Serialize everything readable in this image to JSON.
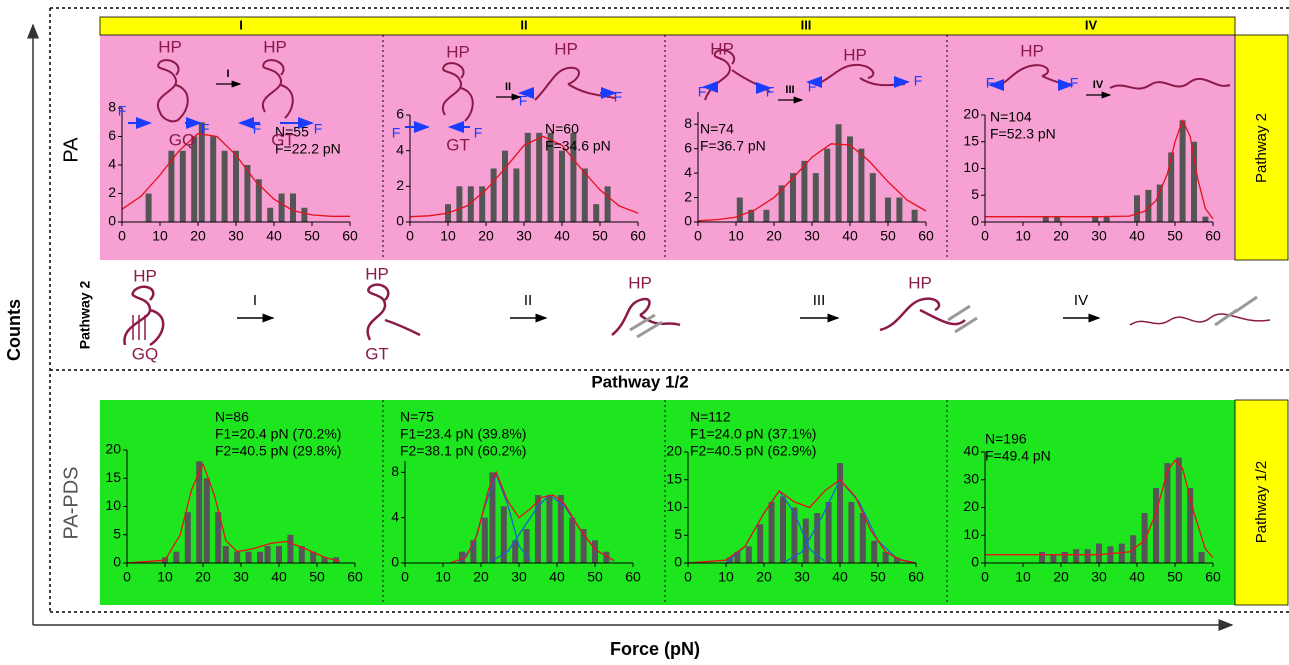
{
  "columns": [
    "I",
    "II",
    "III",
    "IV"
  ],
  "row_labels": [
    "PA",
    "PA-PDS"
  ],
  "side_labels": [
    "Pathway 2",
    "Pathway 1/2"
  ],
  "axis_labels": {
    "y": "Counts",
    "x": "Force (pN)"
  },
  "section_title": "Pathway 1/2",
  "pathway": {
    "label": "Pathway 2",
    "states": [
      "HP",
      "HP",
      "HP",
      "HP"
    ],
    "sub": [
      "GQ",
      "GT"
    ],
    "steps": [
      "I",
      "II",
      "III",
      "IV"
    ]
  },
  "insets": [
    {
      "labels": [
        "HP",
        "HP",
        "GQ",
        "GT",
        "F",
        "F",
        "F",
        "F"
      ],
      "step": "I"
    },
    {
      "labels": [
        "HP",
        "HP",
        "GT",
        "F",
        "F",
        "F",
        "F"
      ],
      "step": "II"
    },
    {
      "labels": [
        "HP",
        "HP",
        "F",
        "F",
        "F",
        "F"
      ],
      "step": "III"
    },
    {
      "labels": [
        "HP",
        "F",
        "F"
      ],
      "step": "IV"
    }
  ],
  "chart_data": [
    {
      "type": "bar",
      "background": "#f7a0d4",
      "color": "#555555",
      "x": [
        7,
        13,
        16,
        19,
        21,
        24,
        27,
        30,
        33,
        36,
        39,
        42,
        45,
        48
      ],
      "values": [
        2,
        5,
        5,
        6,
        7,
        6,
        5,
        5,
        4,
        3,
        1,
        2,
        2,
        1
      ],
      "xlim": [
        0,
        60
      ],
      "xticks": [
        0,
        10,
        20,
        30,
        40,
        50,
        60
      ],
      "ylim": [
        0,
        8
      ],
      "yticks": [
        0,
        2,
        4,
        6,
        8
      ],
      "annotations": [
        "N=55",
        "F=22.2 pN"
      ],
      "fits": [
        {
          "color": "#e8101a",
          "x": [
            0,
            5,
            10,
            15,
            20,
            25,
            30,
            35,
            40,
            45,
            50,
            55,
            60
          ],
          "values": [
            0.9,
            1.8,
            3.3,
            5.0,
            6.2,
            6.0,
            4.7,
            2.9,
            1.6,
            0.8,
            0.5,
            0.4,
            0.4
          ]
        }
      ]
    },
    {
      "type": "bar",
      "background": "#f7a0d4",
      "color": "#555555",
      "x": [
        10,
        13,
        16,
        19,
        22,
        25,
        28,
        31,
        34,
        37,
        40,
        43,
        46,
        49,
        52
      ],
      "values": [
        1,
        2,
        2,
        2,
        3,
        4,
        3,
        5,
        5,
        5,
        4,
        5,
        3,
        1,
        2
      ],
      "xlim": [
        0,
        60
      ],
      "xticks": [
        0,
        10,
        20,
        30,
        40,
        50,
        60
      ],
      "ylim": [
        0,
        6
      ],
      "yticks": [
        0,
        2,
        4,
        6
      ],
      "annotations": [
        "N=60",
        "F=34.6 pN"
      ],
      "fits": [
        {
          "color": "#e8101a",
          "x": [
            0,
            5,
            10,
            15,
            20,
            25,
            30,
            35,
            40,
            45,
            50,
            55,
            60
          ],
          "values": [
            0.3,
            0.35,
            0.5,
            0.9,
            1.8,
            3.0,
            4.3,
            4.8,
            4.3,
            3.0,
            1.8,
            0.9,
            0.5
          ]
        }
      ]
    },
    {
      "type": "bar",
      "background": "#f7a0d4",
      "color": "#555555",
      "x": [
        11,
        14,
        18,
        22,
        25,
        28,
        31,
        34,
        37,
        40,
        43,
        46,
        50,
        53,
        57
      ],
      "values": [
        2,
        1,
        1,
        3,
        4,
        5,
        4,
        6,
        8,
        7,
        6,
        4,
        2,
        2,
        1
      ],
      "xlim": [
        0,
        60
      ],
      "xticks": [
        0,
        10,
        20,
        30,
        40,
        50,
        60
      ],
      "ylim": [
        0,
        9
      ],
      "yticks": [
        0,
        2,
        4,
        6,
        8
      ],
      "annotations": [
        "N=74",
        "F=36.7 pN"
      ],
      "fits": [
        {
          "color": "#e8101a",
          "x": [
            0,
            5,
            10,
            15,
            20,
            25,
            30,
            35,
            40,
            45,
            50,
            55,
            60
          ],
          "values": [
            0.1,
            0.2,
            0.4,
            1.0,
            2.0,
            3.6,
            5.3,
            6.4,
            6.3,
            5.0,
            3.3,
            1.8,
            0.9
          ]
        }
      ]
    },
    {
      "type": "bar",
      "background": "#f7a0d4",
      "color": "#555555",
      "x": [
        16,
        19,
        29,
        32,
        40,
        43,
        46,
        49,
        52,
        55,
        58
      ],
      "values": [
        1,
        1,
        1,
        1,
        5,
        6,
        7,
        13,
        19,
        15,
        1
      ],
      "xlim": [
        0,
        60
      ],
      "xticks": [
        0,
        10,
        20,
        30,
        40,
        50,
        60
      ],
      "ylim": [
        0,
        20
      ],
      "yticks": [
        0,
        5,
        10,
        15,
        20
      ],
      "annotations": [
        "N=104",
        "F=52.3 pN"
      ],
      "fits": [
        {
          "color": "#e8101a",
          "x": [
            0,
            10,
            20,
            30,
            38,
            42,
            45,
            48,
            50,
            52,
            54,
            56,
            58,
            60
          ],
          "values": [
            1,
            1,
            1,
            1,
            1.1,
            2,
            4,
            9,
            15,
            19,
            16,
            8,
            2.5,
            0.6
          ]
        }
      ]
    },
    {
      "type": "bar",
      "background": "#1ee61e",
      "color": "#555555",
      "x": [
        10,
        13,
        16,
        19,
        21,
        24,
        26,
        29,
        32,
        35,
        37,
        40,
        43,
        46,
        49,
        52,
        55
      ],
      "values": [
        1,
        2,
        9,
        18,
        15,
        9,
        3,
        2,
        2,
        2,
        3,
        3,
        5,
        3,
        2,
        1,
        1
      ],
      "xlim": [
        0,
        60
      ],
      "xticks": [
        0,
        10,
        20,
        30,
        40,
        50,
        60
      ],
      "ylim": [
        0,
        20
      ],
      "yticks": [
        0,
        5,
        10,
        15,
        20
      ],
      "annotations": [
        "N=86",
        "F1=20.4 pN (70.2%)",
        "F2=40.5 pN (29.8%)"
      ],
      "fits": [
        {
          "color": "#e8101a",
          "x": [
            0,
            10,
            14,
            17,
            20,
            23,
            26,
            29,
            33,
            38,
            42,
            47,
            52,
            56
          ],
          "values": [
            0,
            0.5,
            5,
            13,
            17.5,
            12,
            4,
            2,
            2.5,
            3.5,
            3.8,
            2.5,
            1,
            0.3
          ]
        }
      ]
    },
    {
      "type": "bar",
      "background": "#1ee61e",
      "color": "#555555",
      "x": [
        15,
        18,
        21,
        23,
        26,
        29,
        32,
        35,
        38,
        41,
        44,
        47,
        50,
        53
      ],
      "values": [
        1,
        2,
        4,
        8,
        5,
        2,
        3,
        6,
        6,
        6,
        4,
        3,
        2,
        1
      ],
      "xlim": [
        0,
        60
      ],
      "xticks": [
        0,
        10,
        20,
        30,
        40,
        50,
        60
      ],
      "ylim": [
        0,
        9
      ],
      "yticks": [
        0,
        4,
        8
      ],
      "annotations": [
        "N=75",
        "F1=23.4 pN (39.8%)",
        "F2=38.1 pN (60.2%)"
      ],
      "fits": [
        {
          "color": "#1f5fd0",
          "x": [
            14,
            18,
            21,
            24,
            27,
            30,
            33
          ],
          "values": [
            0,
            1.5,
            5,
            7.8,
            5.2,
            1.5,
            0.2
          ]
        },
        {
          "color": "#1f5fd0",
          "x": [
            22,
            27,
            31,
            35,
            38,
            42,
            46,
            50,
            55
          ],
          "values": [
            0,
            1,
            3,
            5,
            6,
            5,
            3,
            1.2,
            0.2
          ]
        },
        {
          "color": "#e8101a",
          "x": [
            12,
            16,
            19,
            22,
            24,
            27,
            30,
            33,
            36,
            39,
            42,
            46,
            50,
            55
          ],
          "values": [
            0,
            0.5,
            2.5,
            6.5,
            8,
            5.5,
            4,
            4.8,
            5.8,
            6,
            5.2,
            3,
            1.2,
            0.2
          ]
        }
      ]
    },
    {
      "type": "bar",
      "background": "#1ee61e",
      "color": "#555555",
      "x": [
        11,
        13,
        16,
        19,
        22,
        25,
        28,
        31,
        34,
        37,
        40,
        43,
        46,
        49,
        52,
        55
      ],
      "values": [
        1,
        2,
        3,
        7,
        11,
        12,
        10,
        8,
        9,
        11,
        18,
        11,
        9,
        4,
        2,
        1
      ],
      "xlim": [
        0,
        60
      ],
      "xticks": [
        0,
        10,
        20,
        30,
        40,
        50,
        60
      ],
      "ylim": [
        0,
        20
      ],
      "yticks": [
        0,
        5,
        10,
        15,
        20
      ],
      "annotations": [
        "N=112",
        "F1=24.0 pN (37.1%)",
        "F2=40.5 pN (62.9%)"
      ],
      "fits": [
        {
          "color": "#1f5fd0",
          "x": [
            10,
            15,
            20,
            24,
            28,
            32,
            36
          ],
          "values": [
            0,
            3,
            9,
            13,
            9,
            2.5,
            0.3
          ]
        },
        {
          "color": "#1f5fd0",
          "x": [
            25,
            30,
            35,
            40,
            45,
            50,
            55,
            60
          ],
          "values": [
            0,
            2,
            8,
            15,
            11,
            4,
            0.8,
            0
          ]
        },
        {
          "color": "#e8101a",
          "x": [
            0,
            10,
            15,
            20,
            24,
            28,
            32,
            36,
            40,
            44,
            48,
            52,
            56,
            60
          ],
          "values": [
            0,
            0.5,
            3,
            9,
            13,
            11,
            10,
            13,
            15,
            12,
            6,
            2,
            0.5,
            0
          ]
        }
      ]
    },
    {
      "type": "bar",
      "background": "#1ee61e",
      "color": "#555555",
      "x": [
        15,
        18,
        21,
        24,
        27,
        30,
        33,
        36,
        39,
        42,
        45,
        48,
        51,
        54,
        57
      ],
      "values": [
        4,
        3,
        4,
        5,
        5,
        7,
        6,
        7,
        10,
        18,
        27,
        36,
        38,
        27,
        4
      ],
      "xlim": [
        0,
        60
      ],
      "xticks": [
        0,
        10,
        20,
        30,
        40,
        50,
        60
      ],
      "ylim": [
        0,
        40
      ],
      "yticks": [
        0,
        10,
        20,
        30,
        40
      ],
      "annotations": [
        "N=196",
        "F=49.4 pN"
      ],
      "fits": [
        {
          "color": "#e8101a",
          "x": [
            0,
            30,
            38,
            42,
            45,
            48,
            50,
            52,
            55,
            58,
            60
          ],
          "values": [
            3,
            3,
            4,
            8,
            18,
            33,
            37,
            34,
            18,
            5,
            2
          ]
        }
      ]
    }
  ]
}
